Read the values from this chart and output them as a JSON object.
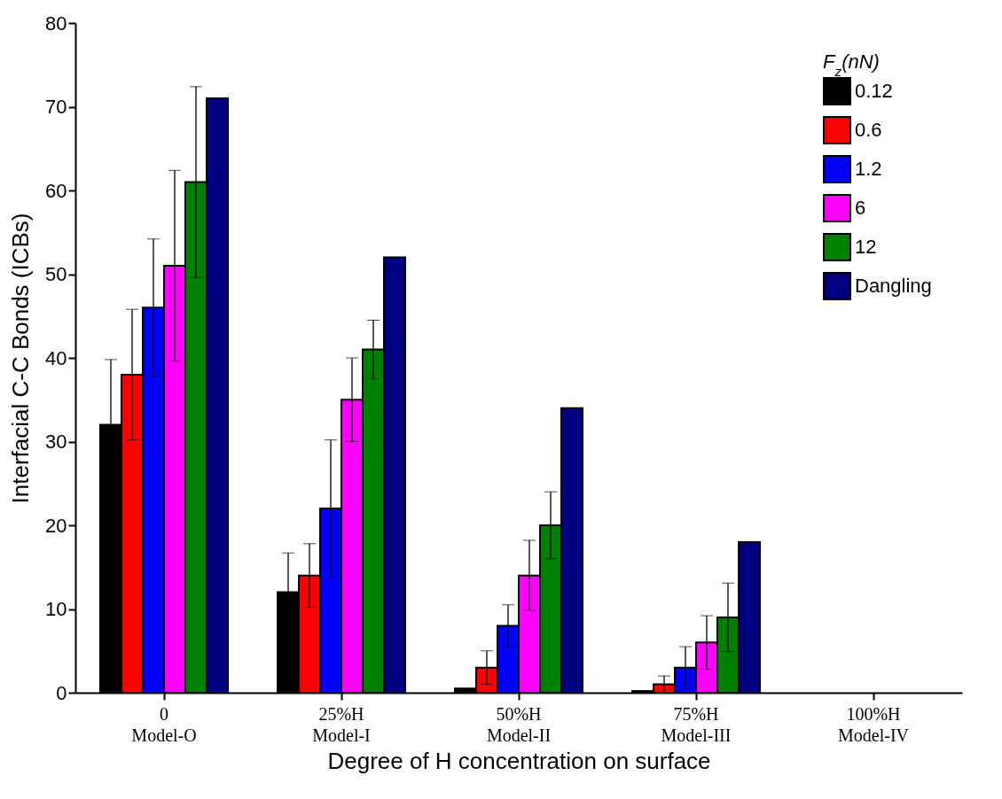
{
  "chart_data": {
    "type": "bar",
    "xlabel": "Degree of H concentration on surface",
    "ylabel": "Interfacial C-C Bonds  (ICBs)",
    "legend_title": "F$_{z}$(nN)",
    "categories": [
      "0\nModel-O",
      "25%H\nModel-I",
      "50%H\nModel-II",
      "75%H\nModel-III",
      "100%H\nModel-IV"
    ],
    "series": [
      {
        "name": "0.12",
        "color": "#000000",
        "values": [
          32,
          12,
          0.5,
          0.2,
          0
        ],
        "errors": [
          7.8,
          4.7,
          null,
          null,
          null
        ]
      },
      {
        "name": "0.6",
        "color": "#ff0000",
        "values": [
          38,
          14,
          3,
          1,
          0
        ],
        "errors": [
          7.8,
          3.8,
          2,
          1,
          null
        ]
      },
      {
        "name": "1.2",
        "color": "#0000ff",
        "values": [
          46,
          22,
          8,
          3,
          0
        ],
        "errors": [
          8.2,
          8.2,
          2.5,
          2.5,
          null
        ]
      },
      {
        "name": "6",
        "color": "#ff00ff",
        "values": [
          51,
          35,
          14,
          6,
          0
        ],
        "errors": [
          11.4,
          5,
          4.2,
          3.2,
          null
        ]
      },
      {
        "name": "12",
        "color": "#008000",
        "values": [
          61,
          41,
          20,
          9,
          0
        ],
        "errors": [
          11.4,
          3.5,
          4,
          4.1,
          null
        ]
      },
      {
        "name": "Dangling",
        "color": "#000080",
        "values": [
          71,
          52,
          34,
          18,
          0
        ]
      }
    ],
    "ylim": [
      0,
      80
    ],
    "yticks": [
      0,
      10,
      20,
      30,
      40,
      50,
      60,
      70,
      80
    ],
    "grid": false,
    "legend": "top right"
  }
}
